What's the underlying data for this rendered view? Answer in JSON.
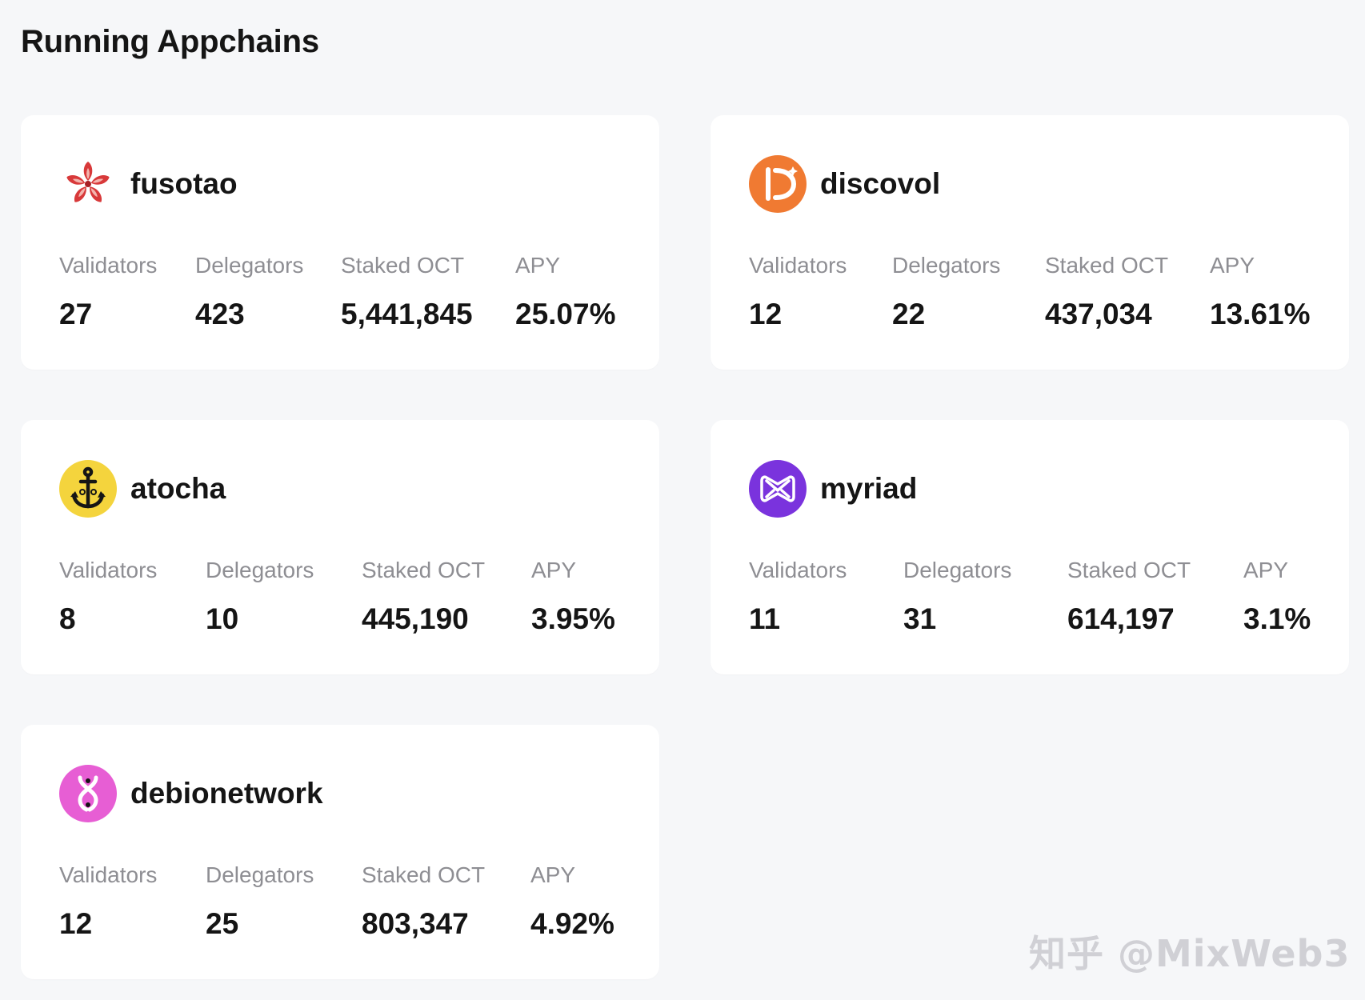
{
  "page": {
    "title": "Running Appchains"
  },
  "labels": {
    "validators": "Validators",
    "delegators": "Delegators",
    "staked": "Staked OCT",
    "apy": "APY"
  },
  "appchains": [
    {
      "name": "fusotao",
      "icon": "red-lotus-icon",
      "validators": "27",
      "delegators": "423",
      "staked": "5,441,845",
      "apy": "25.07%"
    },
    {
      "name": "discovol",
      "icon": "orange-d-icon",
      "validators": "12",
      "delegators": "22",
      "staked": "437,034",
      "apy": "13.61%"
    },
    {
      "name": "atocha",
      "icon": "anchor-icon",
      "validators": "8",
      "delegators": "10",
      "staked": "445,190",
      "apy": "3.95%"
    },
    {
      "name": "myriad",
      "icon": "purple-envelope-icon",
      "validators": "11",
      "delegators": "31",
      "staked": "614,197",
      "apy": "3.1%"
    },
    {
      "name": "debionetwork",
      "icon": "dna-icon",
      "validators": "12",
      "delegators": "25",
      "staked": "803,347",
      "apy": "4.92%"
    }
  ],
  "colors": {
    "background": "#f6f7f9",
    "card": "#ffffff",
    "label": "#8e8e93",
    "text": "#151515"
  },
  "watermark": "知乎 @MixWeb3"
}
